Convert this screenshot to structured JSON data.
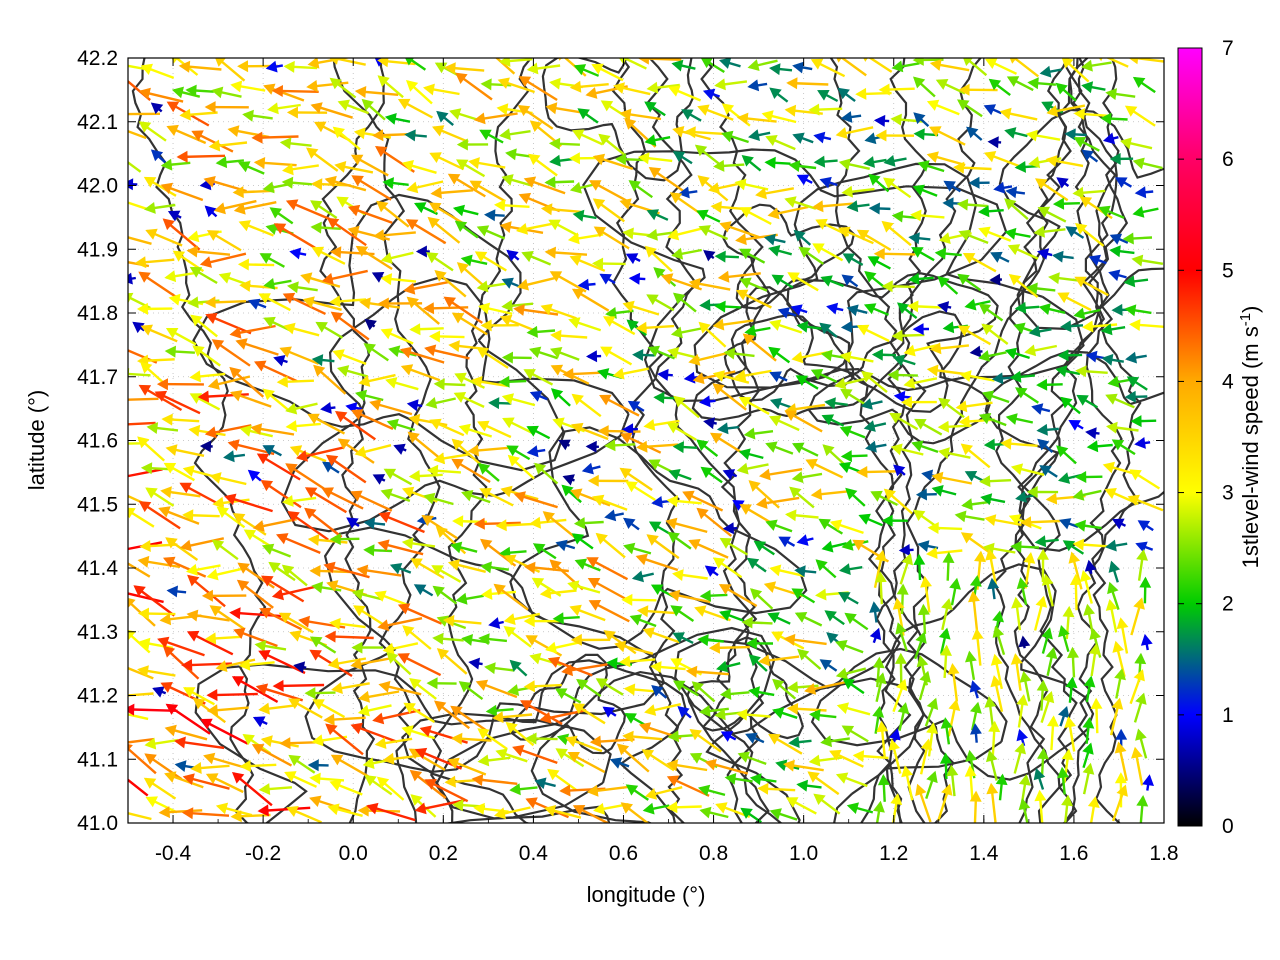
{
  "chart_data": {
    "type": "vector-field",
    "xlabel": "longitude (°)",
    "ylabel": "latitude (°)",
    "xlim": [
      -0.5,
      1.8
    ],
    "ylim": [
      41.0,
      42.2
    ],
    "xticks": [
      "-0.4",
      "-0.2",
      "0.0",
      "0.2",
      "0.4",
      "0.6",
      "0.8",
      "1.0",
      "1.2",
      "1.4",
      "1.6",
      "1.8"
    ],
    "xtick_values": [
      -0.4,
      -0.2,
      0.0,
      0.2,
      0.4,
      0.6,
      0.8,
      1.0,
      1.2,
      1.4,
      1.6,
      1.8
    ],
    "yticks": [
      "41.0",
      "41.1",
      "41.2",
      "41.3",
      "41.4",
      "41.5",
      "41.6",
      "41.7",
      "41.8",
      "41.9",
      "42.0",
      "42.1",
      "42.2"
    ],
    "ytick_values": [
      41.0,
      41.1,
      41.2,
      41.3,
      41.4,
      41.5,
      41.6,
      41.7,
      41.8,
      41.9,
      42.0,
      42.1,
      42.2
    ],
    "grid": true,
    "colorbar": {
      "label": "1stlevel-wind speed (m s",
      "label_sup": "-1",
      "label_end": ")",
      "range": [
        0,
        7
      ],
      "ticks": [
        "0",
        "1",
        "2",
        "3",
        "4",
        "5",
        "6",
        "7"
      ],
      "tick_values": [
        0,
        1,
        2,
        3,
        4,
        5,
        6,
        7
      ],
      "colors": [
        "#000000",
        "#0000ff",
        "#00cc00",
        "#ffff00",
        "#ffaa00",
        "#ff0000",
        "#ff00ff"
      ]
    },
    "prevailing_wind_direction": "from east, toward west-northwest",
    "contour_color": "#333333"
  }
}
